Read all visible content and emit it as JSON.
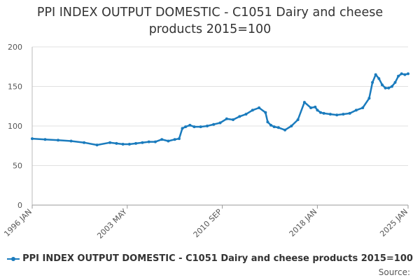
{
  "title_line1": "PPI INDEX OUTPUT DOMESTIC - C1051 Dairy and cheese",
  "title_line2": "products 2015=100",
  "source_label": "Source:",
  "colors": {
    "series": "#1a7bbd",
    "grid": "#e0e0e0",
    "axis_text": "#555555"
  },
  "chart_data": {
    "type": "line",
    "title": "PPI INDEX OUTPUT DOMESTIC - C1051 Dairy and cheese products 2015=100",
    "xlabel": "",
    "ylabel": "",
    "ylim": [
      0,
      200
    ],
    "yticks": [
      0,
      50,
      100,
      150,
      200
    ],
    "xlim": [
      "1996-01",
      "2025-01"
    ],
    "xtick_labels": [
      "1996 JAN",
      "2003 MAY",
      "2010 SEP",
      "2018 JAN",
      "2025 JAN"
    ],
    "xtick_dates": [
      "1996-01",
      "2003-05",
      "2010-09",
      "2018-01",
      "2025-01"
    ],
    "grid": true,
    "legend_position": "bottom",
    "series": [
      {
        "name": "PPI INDEX OUTPUT DOMESTIC - C1051 Dairy and cheese products 2015=100",
        "x": [
          "1996-01",
          "1997-01",
          "1998-01",
          "1999-01",
          "2000-01",
          "2001-01",
          "2002-01",
          "2002-07",
          "2003-01",
          "2003-07",
          "2004-01",
          "2004-07",
          "2005-01",
          "2005-07",
          "2006-01",
          "2006-07",
          "2007-01",
          "2007-05",
          "2007-08",
          "2007-11",
          "2008-03",
          "2008-07",
          "2009-01",
          "2009-07",
          "2010-01",
          "2010-07",
          "2011-01",
          "2011-07",
          "2012-01",
          "2012-07",
          "2013-01",
          "2013-07",
          "2014-01",
          "2014-03",
          "2014-06",
          "2014-09",
          "2015-01",
          "2015-07",
          "2016-01",
          "2016-07",
          "2017-01",
          "2017-07",
          "2017-11",
          "2018-01",
          "2018-04",
          "2018-07",
          "2019-01",
          "2019-07",
          "2020-01",
          "2020-07",
          "2021-01",
          "2021-07",
          "2022-01",
          "2022-04",
          "2022-07",
          "2022-10",
          "2023-01",
          "2023-04",
          "2023-07",
          "2023-10",
          "2024-01",
          "2024-04",
          "2024-07",
          "2024-10",
          "2025-01"
        ],
        "values": [
          84,
          83,
          82,
          81,
          79,
          76,
          79,
          78,
          77,
          77,
          78,
          79,
          80,
          80,
          83,
          81,
          83,
          84,
          97,
          99,
          101,
          99,
          99,
          100,
          102,
          104,
          109,
          108,
          112,
          115,
          120,
          123,
          117,
          105,
          101,
          99,
          98,
          95,
          100,
          108,
          130,
          123,
          124,
          120,
          117,
          116,
          115,
          114,
          115,
          116,
          120,
          123,
          135,
          155,
          165,
          160,
          152,
          148,
          148,
          150,
          155,
          163,
          166,
          165,
          166
        ]
      }
    ]
  }
}
